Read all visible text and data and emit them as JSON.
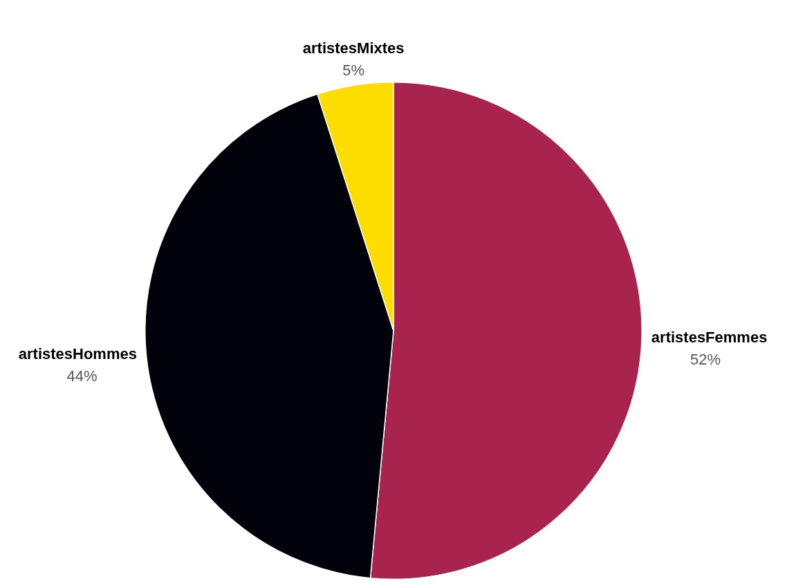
{
  "chart_data": {
    "type": "pie",
    "categories": [
      "artistesFemmes",
      "artistesHommes",
      "artistesMixtes"
    ],
    "values": [
      52,
      44,
      5
    ],
    "colors": [
      "#a8234e",
      "#02020a",
      "#fddc00"
    ],
    "value_labels": [
      "52%",
      "44%",
      "5%"
    ],
    "legend": false
  }
}
